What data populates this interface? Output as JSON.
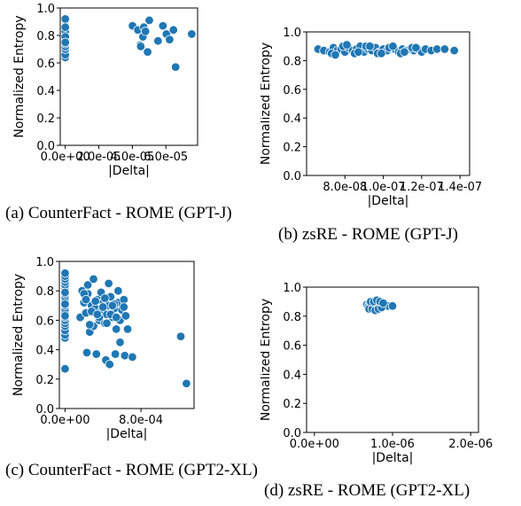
{
  "chart_data": [
    {
      "type": "scatter",
      "caption": "(a) CounterFact - ROME (GPT-J)",
      "xlabel": "|Delta|",
      "ylabel": "Normalized Entropy",
      "xlim": [
        -3e-06,
        7.89e-05
      ],
      "ylim": [
        0.0,
        1.0
      ],
      "xticks": [
        0,
        2e-05,
        4e-05,
        6e-05
      ],
      "xtick_labels": [
        "0.0e+00",
        "2.0e-05",
        "4.0e-05",
        "6.0e-05"
      ],
      "yticks": [
        0.0,
        0.2,
        0.4,
        0.6,
        0.8,
        1.0
      ],
      "ytick_labels": [
        "0.0",
        "0.2",
        "0.4",
        "0.6",
        "0.8",
        "1.0"
      ],
      "color": "#1f77b4",
      "x": [
        0,
        0,
        0,
        0,
        0,
        0,
        0,
        0,
        0,
        0,
        0,
        0,
        0,
        0,
        0,
        0,
        0,
        0,
        0,
        0,
        0,
        0,
        4.01e-05,
        4.33e-05,
        4.47e-05,
        4.5e-05,
        4.63e-05,
        4.68e-05,
        4.78e-05,
        4.91e-05,
        5.01e-05,
        5.53e-05,
        5.82e-05,
        6.03e-05,
        6.22e-05,
        6.45e-05,
        6.58e-05,
        7.54e-05
      ],
      "y": [
        0.64,
        0.66,
        0.7,
        0.72,
        0.74,
        0.76,
        0.78,
        0.8,
        0.82,
        0.84,
        0.85,
        0.86,
        0.87,
        0.88,
        0.89,
        0.9,
        0.91,
        0.92,
        0.83,
        0.79,
        0.75,
        0.86,
        0.87,
        0.84,
        0.73,
        0.72,
        0.79,
        0.86,
        0.83,
        0.68,
        0.91,
        0.76,
        0.87,
        0.81,
        0.77,
        0.84,
        0.57,
        0.81
      ]
    },
    {
      "type": "scatter",
      "caption": "(b) zsRE - ROME (GPT-J)",
      "xlabel": "|Delta|",
      "ylabel": "Normalized Entropy",
      "xlim": [
        6e-08,
        1.45e-07
      ],
      "ylim": [
        0.0,
        1.0
      ],
      "xticks": [
        8e-08,
        1e-07,
        1.2e-07,
        1.4e-07
      ],
      "xtick_labels": [
        "8.0e-08",
        "1.0e-07",
        "1.2e-07",
        "1.4e-07"
      ],
      "yticks": [
        0.0,
        0.2,
        0.4,
        0.6,
        0.8,
        1.0
      ],
      "ytick_labels": [
        "0.0",
        "0.2",
        "0.4",
        "0.6",
        "0.8",
        "1.0"
      ],
      "color": "#1f77b4",
      "x": [
        6.6e-08,
        6.9e-08,
        7.2e-08,
        7.4e-08,
        7.6e-08,
        7.8e-08,
        8e-08,
        8.2e-08,
        8.4e-08,
        8.6e-08,
        8.8e-08,
        9e-08,
        9.2e-08,
        9.4e-08,
        9.6e-08,
        9.8e-08,
        1e-07,
        1.02e-07,
        1.04e-07,
        1.06e-07,
        1.08e-07,
        1.1e-07,
        1.12e-07,
        1.14e-07,
        1.16e-07,
        1.18e-07,
        1.2e-07,
        1.22e-07,
        1.25e-07,
        1.28e-07,
        1.32e-07,
        1.37e-07,
        7.3e-08,
        7.9e-08,
        8.5e-08,
        9.1e-08,
        9.7e-08,
        1.03e-07,
        1.09e-07,
        1.15e-07,
        7.5e-08,
        8.1e-08,
        8.7e-08,
        9.3e-08,
        9.9e-08,
        1.05e-07,
        1.11e-07,
        1.17e-07
      ],
      "y": [
        0.88,
        0.87,
        0.86,
        0.89,
        0.87,
        0.88,
        0.86,
        0.89,
        0.87,
        0.88,
        0.9,
        0.86,
        0.88,
        0.87,
        0.89,
        0.86,
        0.88,
        0.87,
        0.89,
        0.88,
        0.86,
        0.88,
        0.87,
        0.88,
        0.87,
        0.88,
        0.86,
        0.88,
        0.87,
        0.88,
        0.88,
        0.87,
        0.85,
        0.9,
        0.85,
        0.9,
        0.85,
        0.89,
        0.85,
        0.89,
        0.84,
        0.91,
        0.86,
        0.9,
        0.85,
        0.9,
        0.86,
        0.89
      ]
    },
    {
      "type": "scatter",
      "caption": "(c) CounterFact - ROME (GPT2-XL)",
      "xlabel": "|Delta|",
      "ylabel": "Normalized Entropy",
      "xlim": [
        -6e-05,
        0.00136
      ],
      "ylim": [
        0.0,
        1.0
      ],
      "xticks": [
        0,
        0.0008
      ],
      "xtick_labels": [
        "0.0e+00",
        "8.0e-04"
      ],
      "yticks": [
        0.0,
        0.2,
        0.4,
        0.6,
        0.8,
        1.0
      ],
      "ytick_labels": [
        "0.0",
        "0.2",
        "0.4",
        "0.6",
        "0.8",
        "1.0"
      ],
      "color": "#1f77b4",
      "x": [
        0,
        0,
        0,
        0,
        0,
        0,
        0,
        0,
        0,
        0,
        0,
        0,
        0,
        0,
        0,
        0,
        0,
        0,
        0,
        0,
        0,
        0,
        0,
        0,
        0,
        0,
        0.00016,
        0.00018,
        0.0002,
        0.00022,
        0.00024,
        0.00026,
        0.00028,
        0.0003,
        0.00032,
        0.00034,
        0.00036,
        0.00038,
        0.0004,
        0.00042,
        0.00044,
        0.00046,
        0.00048,
        0.0005,
        0.00052,
        0.00054,
        0.00056,
        0.00058,
        0.0006,
        0.00062,
        0.00064,
        0.00066,
        0.0002,
        0.00024,
        0.00028,
        0.00032,
        0.00036,
        0.0004,
        0.00044,
        0.00048,
        0.00052,
        0.00056,
        0.00022,
        0.0003,
        0.00038,
        0.00046,
        0.00054,
        0.00062,
        0.00026,
        0.00034,
        0.00042,
        0.0005,
        0.00023,
        0.00033,
        0.00043,
        0.00053,
        0.00063,
        0.00047,
        0.00058,
        0.00071,
        0.00122,
        0.00128
      ],
      "y": [
        0.27,
        0.48,
        0.5,
        0.53,
        0.56,
        0.58,
        0.6,
        0.62,
        0.64,
        0.66,
        0.68,
        0.7,
        0.72,
        0.74,
        0.76,
        0.78,
        0.8,
        0.82,
        0.84,
        0.86,
        0.88,
        0.9,
        0.92,
        0.63,
        0.71,
        0.79,
        0.62,
        0.8,
        0.72,
        0.65,
        0.78,
        0.52,
        0.7,
        0.56,
        0.68,
        0.74,
        0.6,
        0.66,
        0.72,
        0.58,
        0.64,
        0.7,
        0.76,
        0.62,
        0.68,
        0.54,
        0.72,
        0.6,
        0.67,
        0.74,
        0.63,
        0.54,
        0.78,
        0.84,
        0.66,
        0.73,
        0.62,
        0.69,
        0.58,
        0.64,
        0.71,
        0.8,
        0.74,
        0.88,
        0.79,
        0.85,
        0.62,
        0.69,
        0.57,
        0.64,
        0.75,
        0.7,
        0.38,
        0.37,
        0.33,
        0.37,
        0.36,
        0.3,
        0.45,
        0.35,
        0.49,
        0.17
      ]
    },
    {
      "type": "scatter",
      "caption": "(d) zsRE - ROME (GPT2-XL)",
      "xlabel": "|Delta|",
      "ylabel": "Normalized Entropy",
      "xlim": [
        -1e-07,
        2.1e-06
      ],
      "ylim": [
        0.0,
        1.0
      ],
      "xticks": [
        0,
        1e-06,
        2e-06
      ],
      "xtick_labels": [
        "0.0e+00",
        "1.0e-06",
        "2.0e-06"
      ],
      "yticks": [
        0.0,
        0.2,
        0.4,
        0.6,
        0.8,
        1.0
      ],
      "ytick_labels": [
        "0.0",
        "0.2",
        "0.4",
        "0.6",
        "0.8",
        "1.0"
      ],
      "color": "#1f77b4",
      "x": [
        6.7e-07,
        6.9e-07,
        7.1e-07,
        7.3e-07,
        7.5e-07,
        7.7e-07,
        7.9e-07,
        8.1e-07,
        8.3e-07,
        8.5e-07,
        8.7e-07,
        8.9e-07,
        9.1e-07,
        9.4e-07,
        7e-07,
        7.4e-07,
        7.8e-07,
        8.2e-07,
        8.6e-07,
        7.2e-07,
        7.6e-07,
        8e-07,
        8.4e-07,
        8.8e-07,
        1e-06
      ],
      "y": [
        0.88,
        0.87,
        0.89,
        0.86,
        0.88,
        0.9,
        0.87,
        0.88,
        0.86,
        0.89,
        0.87,
        0.88,
        0.88,
        0.87,
        0.85,
        0.85,
        0.84,
        0.85,
        0.86,
        0.9,
        0.9,
        0.91,
        0.9,
        0.89,
        0.87
      ]
    }
  ]
}
